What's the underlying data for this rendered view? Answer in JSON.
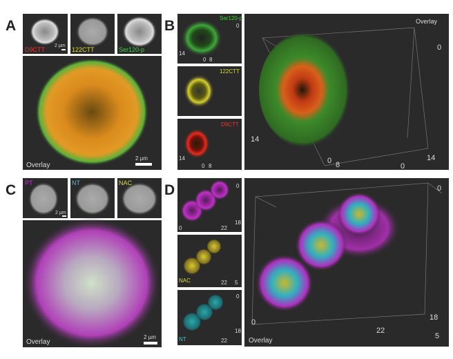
{
  "panels": {
    "A": {
      "letter": "A",
      "thumbnails": [
        "D9CTT",
        "122CTT",
        "Ser120-p"
      ],
      "thumb_scale": "2 µm",
      "overlay_label": "Overlay",
      "overlay_scale": "2 µm"
    },
    "B": {
      "letter": "B",
      "views": [
        {
          "label": "Ser120-p",
          "axis": [
            "14",
            "0",
            "8",
            "0"
          ]
        },
        {
          "label": "122CTT"
        },
        {
          "label": "D9CTT",
          "axis": [
            "14",
            "0",
            "8"
          ]
        }
      ],
      "overlay_label": "Overlay",
      "overlay_axis": [
        "0",
        "14",
        "0",
        "8",
        "14",
        "0"
      ]
    },
    "C": {
      "letter": "C",
      "thumbnails": [
        "PT",
        "NT",
        "NAC"
      ],
      "thumb_scale": "2 µm",
      "overlay_label": "Overlay",
      "overlay_scale": "2 µm"
    },
    "D": {
      "letter": "D",
      "views": [
        {
          "axis": [
            "0",
            "22",
            "18",
            "0"
          ]
        },
        {
          "label": "NAC",
          "axis": [
            "22",
            "5"
          ]
        },
        {
          "label": "NT",
          "axis": [
            "0",
            "22",
            "18"
          ]
        }
      ],
      "overlay_label": "Overlay",
      "overlay_axis": [
        "0",
        "18",
        "0",
        "22",
        "5"
      ]
    }
  }
}
